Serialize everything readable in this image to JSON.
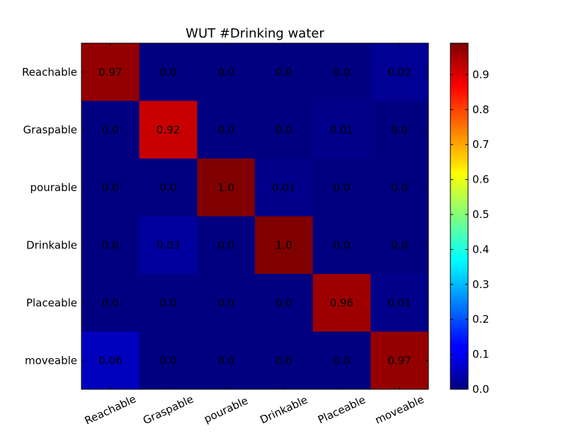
{
  "chart_data": {
    "type": "heatmap",
    "title": "WUT #Drinking water",
    "row_labels": [
      "Reachable",
      "Graspable",
      "pourable",
      "Drinkable",
      "Placeable",
      "moveable"
    ],
    "col_labels": [
      "Reachable",
      "Graspable",
      "pourable",
      "Drinkable",
      "Placeable",
      "moveable"
    ],
    "values": [
      [
        0.97,
        0.0,
        0.0,
        0.0,
        0.0,
        0.02
      ],
      [
        0.0,
        0.92,
        0.0,
        0.0,
        0.01,
        0.0
      ],
      [
        0.0,
        0.0,
        1.0,
        0.01,
        0.0,
        0.0
      ],
      [
        0.0,
        0.03,
        0.0,
        1.0,
        0.0,
        0.0
      ],
      [
        0.0,
        0.0,
        0.0,
        0.0,
        0.96,
        0.01
      ],
      [
        0.06,
        0.0,
        0.0,
        0.0,
        0.0,
        0.97
      ]
    ],
    "cell_labels": [
      [
        "0.97",
        "0.0",
        "0.0",
        "0.0",
        "0.0",
        "0.02"
      ],
      [
        "0.0",
        "0.92",
        "0.0",
        "0.0",
        "0.01",
        "0.0"
      ],
      [
        "0.0",
        "0.0",
        "1.0",
        "0.01",
        "0.0",
        "0.0"
      ],
      [
        "0.0",
        "0.03",
        "0.0",
        "1.0",
        "0.0",
        "0.0"
      ],
      [
        "0.0",
        "0.0",
        "0.0",
        "0.0",
        "0.96",
        "0.01"
      ],
      [
        "0.06",
        "0.0",
        "0.0",
        "0.0",
        "0.0",
        "0.97"
      ]
    ],
    "colormap": "jet",
    "color_range": [
      0.0,
      0.99
    ],
    "colorbar": {
      "ticks": [
        0.0,
        0.1,
        0.2,
        0.3,
        0.4,
        0.5,
        0.6,
        0.7,
        0.8,
        0.9
      ],
      "tick_labels": [
        "0.0",
        "0.1",
        "0.2",
        "0.3",
        "0.4",
        "0.5",
        "0.6",
        "0.7",
        "0.8",
        "0.9"
      ]
    },
    "x_tick_rotation_deg": 25,
    "grid": false,
    "legend": "none"
  }
}
